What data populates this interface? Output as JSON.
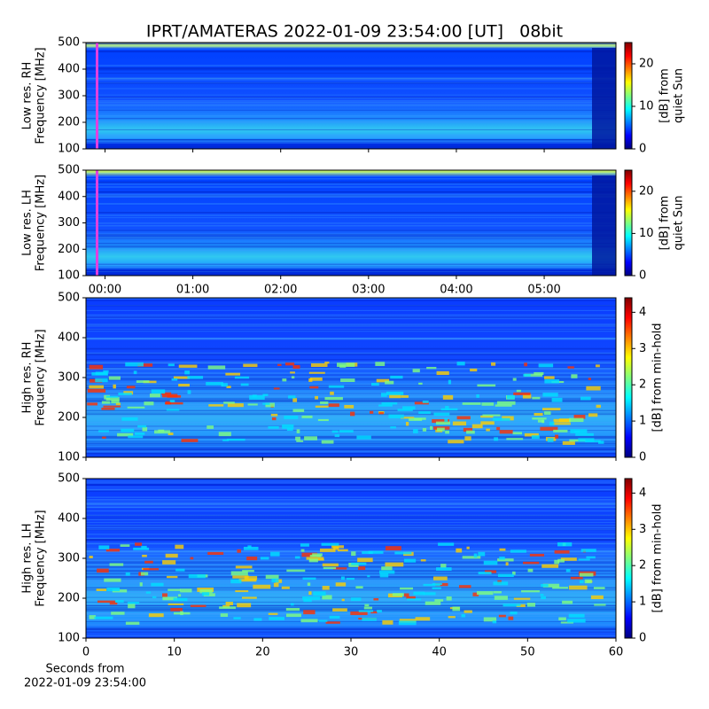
{
  "chart_data": [
    {
      "type": "heatmap",
      "title": "IPRT/AMATERAS 2022-01-09 23:54:00 [UT]   08bit",
      "ylabel": [
        "Low res. RH",
        "Frequency [MHz]"
      ],
      "ylim": [
        100,
        500
      ],
      "yticks": [
        100,
        200,
        300,
        400,
        500
      ],
      "xlim": [
        -13,
        349
      ],
      "xticks": [
        0,
        60,
        120,
        180,
        240,
        300
      ],
      "colorbar": {
        "label": [
          "[dB] from",
          "quiet Sun"
        ],
        "lim": [
          0,
          25
        ],
        "ticks": [
          0,
          10,
          20
        ]
      }
    },
    {
      "type": "heatmap",
      "ylabel": [
        "Low res. LH",
        "Frequency [MHz]"
      ],
      "ylim": [
        100,
        500
      ],
      "yticks": [
        100,
        200,
        300,
        400,
        500
      ],
      "xlim": [
        -13,
        349
      ],
      "xticks": [
        {
          "value": 0,
          "label": "00:00"
        },
        {
          "value": 60,
          "label": "01:00"
        },
        {
          "value": 120,
          "label": "02:00"
        },
        {
          "value": 180,
          "label": "03:00"
        },
        {
          "value": 240,
          "label": "04:00"
        },
        {
          "value": 300,
          "label": "05:00"
        }
      ],
      "colorbar": {
        "label": [
          "[dB] from",
          "quiet Sun"
        ],
        "lim": [
          0,
          25
        ],
        "ticks": [
          0,
          10,
          20
        ]
      }
    },
    {
      "type": "heatmap",
      "ylabel": [
        "High res. RH",
        "Frequency [MHz]"
      ],
      "ylim": [
        100,
        500
      ],
      "yticks": [
        100,
        200,
        300,
        400,
        500
      ],
      "xlim": [
        0,
        60
      ],
      "xticks": [
        0,
        10,
        20,
        30,
        40,
        50,
        60
      ],
      "colorbar": {
        "label": [
          "[dB] from min-hold"
        ],
        "lim": [
          0,
          4.4
        ],
        "ticks": [
          0,
          1,
          2,
          3,
          4
        ]
      }
    },
    {
      "type": "heatmap",
      "ylabel": [
        "High res. LH",
        "Frequency [MHz]"
      ],
      "ylim": [
        100,
        500
      ],
      "yticks": [
        100,
        200,
        300,
        400,
        500
      ],
      "xlim": [
        0,
        60
      ],
      "xticks": [
        0,
        10,
        20,
        30,
        40,
        50,
        60
      ],
      "xlabel": [
        "Seconds from",
        "2022-01-09 23:54:00"
      ],
      "colorbar": {
        "label": [
          "[dB] from min-hold"
        ],
        "lim": [
          0,
          4.4
        ],
        "ticks": [
          0,
          1,
          2,
          3,
          4
        ]
      }
    }
  ]
}
